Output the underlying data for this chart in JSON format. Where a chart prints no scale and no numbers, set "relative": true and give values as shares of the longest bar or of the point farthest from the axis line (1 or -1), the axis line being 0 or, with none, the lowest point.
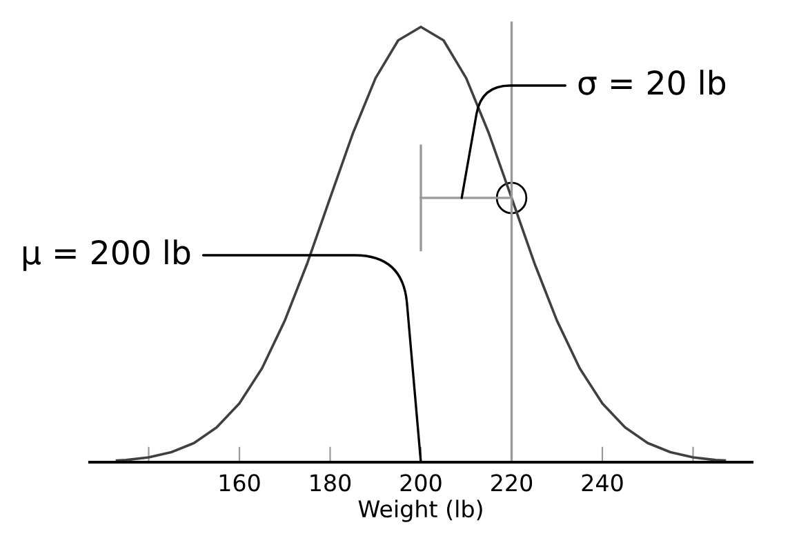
{
  "chart_data": {
    "type": "line",
    "relative": true,
    "xlabel": "Weight (lb)",
    "xlim": [
      127,
      273
    ],
    "xticks": [
      {
        "value": 140,
        "label": null
      },
      160,
      180,
      200,
      220,
      240,
      {
        "value": 260,
        "label": null
      }
    ],
    "series": [
      {
        "color": "#404040",
        "x": [
          133,
          135,
          140,
          145,
          150,
          155,
          160,
          165,
          170,
          175,
          180,
          185,
          190,
          195,
          200,
          205,
          210,
          215,
          220,
          225,
          230,
          235,
          240,
          245,
          250,
          255,
          260,
          265,
          267
        ],
        "values": [
          0.004,
          0.005,
          0.011,
          0.023,
          0.044,
          0.08,
          0.135,
          0.216,
          0.325,
          0.458,
          0.607,
          0.755,
          0.882,
          0.969,
          1.0,
          0.969,
          0.882,
          0.755,
          0.607,
          0.458,
          0.325,
          0.216,
          0.135,
          0.08,
          0.044,
          0.023,
          0.011,
          0.005,
          0.004
        ]
      },
      {
        "color": "#999999",
        "x": [
          200,
          220
        ],
        "values": [
          0.607,
          0.607
        ]
      }
    ],
    "ref_lines": [
      {
        "axis": "x",
        "value": 220,
        "color": "#999999"
      }
    ],
    "annotations": [
      "μ = 200 lb",
      "σ = 20 lb"
    ],
    "grid": false,
    "legend": false,
    "marker": "none",
    "line_style": "solid"
  }
}
